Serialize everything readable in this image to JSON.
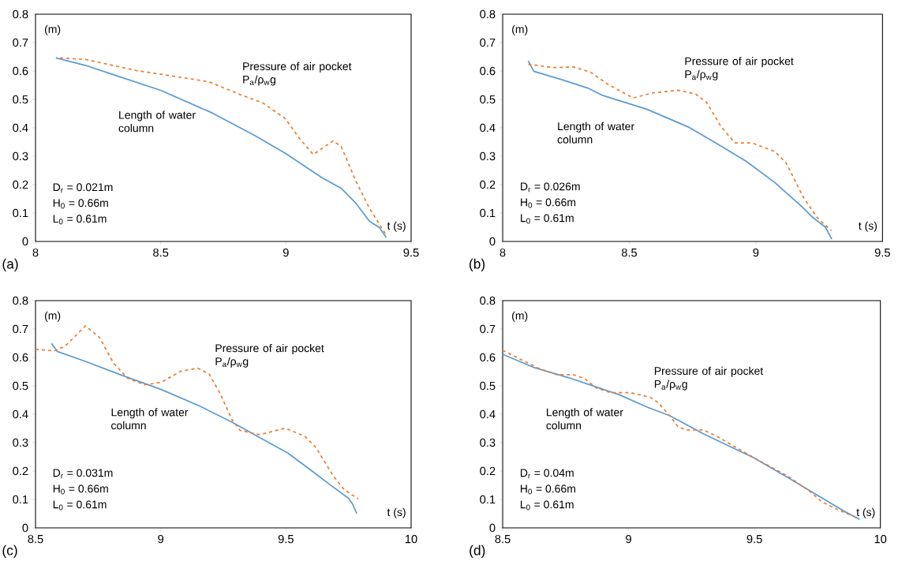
{
  "chart_data": [
    {
      "type": "line",
      "xlabel": "t (s)",
      "ylabel": "(m)",
      "xlim": [
        8,
        9.5
      ],
      "ylim": [
        0,
        0.8
      ],
      "xticks": [
        8,
        8.5,
        9,
        9.5
      ],
      "yticks": [
        0,
        0.1,
        0.2,
        0.3,
        0.4,
        0.5,
        0.6,
        0.7,
        0.8
      ],
      "annotations": [
        "(a)",
        "D$_{r}$ = 0.021m",
        "H$_{0}$ = 0.66m",
        "L$_{0}$ = 0.61m"
      ],
      "series": [
        {
          "name": "Length of water column",
          "color": "#5b9bd5",
          "line_style": "solid",
          "x": [
            8.081,
            8.199,
            8.311,
            8.5,
            8.704,
            8.873,
            9.0,
            9.143,
            9.221,
            9.278,
            9.334,
            9.373,
            9.401
          ],
          "values": [
            0.646,
            0.62,
            0.587,
            0.532,
            0.453,
            0.374,
            0.309,
            0.225,
            0.187,
            0.136,
            0.071,
            0.049,
            0.014
          ]
        },
        {
          "name": "Pressure of air pocket P$_{a}$/ρ$_{w}$g",
          "color": "#ed7d31",
          "line_style": "dashed",
          "x": [
            8.098,
            8.199,
            8.401,
            8.535,
            8.693,
            8.817,
            8.907,
            8.997,
            9.053,
            9.109,
            9.188,
            9.221,
            9.278,
            9.334,
            9.401
          ],
          "values": [
            0.646,
            0.641,
            0.602,
            0.584,
            0.562,
            0.517,
            0.488,
            0.433,
            0.364,
            0.306,
            0.354,
            0.334,
            0.215,
            0.116,
            0.022
          ]
        }
      ]
    },
    {
      "type": "line",
      "xlabel": "t (s)",
      "ylabel": "(m)",
      "xlim": [
        8,
        9.5
      ],
      "ylim": [
        0,
        0.8
      ],
      "xticks": [
        8,
        8.5,
        9,
        9.5
      ],
      "yticks": [
        0,
        0.1,
        0.2,
        0.3,
        0.4,
        0.5,
        0.6,
        0.7,
        0.8
      ],
      "annotations": [
        "(b)",
        "D$_{r}$ = 0.026m",
        "H$_{0}$ = 0.66m",
        "L$_{0}$ = 0.61m"
      ],
      "series": [
        {
          "name": "Length of water column",
          "color": "#5b9bd5",
          "line_style": "solid",
          "x": [
            8.101,
            8.123,
            8.235,
            8.336,
            8.392,
            8.571,
            8.738,
            8.85,
            8.962,
            9.074,
            9.186,
            9.219,
            9.275,
            9.3
          ],
          "values": [
            0.636,
            0.599,
            0.569,
            0.54,
            0.515,
            0.465,
            0.401,
            0.342,
            0.282,
            0.208,
            0.119,
            0.089,
            0.05,
            0.008
          ]
        },
        {
          "name": "Pressure of air pocket P$_{a}$/ρ$_{w}$g",
          "color": "#ed7d31",
          "line_style": "dashed",
          "x": [
            8.101,
            8.201,
            8.28,
            8.347,
            8.414,
            8.515,
            8.593,
            8.693,
            8.76,
            8.805,
            8.861,
            8.917,
            8.984,
            9.074,
            9.119,
            9.186,
            9.242,
            9.298
          ],
          "values": [
            0.624,
            0.612,
            0.614,
            0.596,
            0.554,
            0.505,
            0.523,
            0.532,
            0.52,
            0.49,
            0.406,
            0.347,
            0.347,
            0.317,
            0.277,
            0.158,
            0.084,
            0.038
          ]
        }
      ]
    },
    {
      "type": "line",
      "xlabel": "t (s)",
      "ylabel": "(m)",
      "xlim": [
        8.5,
        10
      ],
      "ylim": [
        0,
        0.8
      ],
      "xticks": [
        8.5,
        9,
        9.5,
        10
      ],
      "yticks": [
        0,
        0.1,
        0.2,
        0.3,
        0.4,
        0.5,
        0.6,
        0.7,
        0.8
      ],
      "annotations": [
        "(c)",
        "D$_{r}$ = 0.031m",
        "H$_{0}$ = 0.66m",
        "L$_{0}$ = 0.61m"
      ],
      "series": [
        {
          "name": "Length of water column",
          "color": "#5b9bd5",
          "line_style": "solid",
          "x": [
            8.564,
            8.587,
            8.699,
            8.845,
            9.002,
            9.148,
            9.283,
            9.395,
            9.508,
            9.598,
            9.688,
            9.75,
            9.766,
            9.783
          ],
          "values": [
            0.649,
            0.621,
            0.586,
            0.537,
            0.487,
            0.432,
            0.373,
            0.318,
            0.263,
            0.204,
            0.144,
            0.104,
            0.084,
            0.05
          ]
        },
        {
          "name": "Pressure of air pocket P$_{a}$/ρ$_{w}$g",
          "color": "#ed7d31",
          "line_style": "dashed",
          "x": [
            8.5,
            8.575,
            8.62,
            8.699,
            8.755,
            8.811,
            8.867,
            8.935,
            9.002,
            9.081,
            9.148,
            9.193,
            9.238,
            9.283,
            9.317,
            9.395,
            9.497,
            9.575,
            9.62,
            9.688,
            9.733,
            9.789
          ],
          "values": [
            0.629,
            0.623,
            0.641,
            0.711,
            0.671,
            0.581,
            0.527,
            0.504,
            0.512,
            0.552,
            0.562,
            0.542,
            0.472,
            0.383,
            0.343,
            0.328,
            0.351,
            0.323,
            0.283,
            0.184,
            0.134,
            0.102
          ]
        }
      ]
    },
    {
      "type": "line",
      "xlabel": "t (s)",
      "ylabel": "(m)",
      "xlim": [
        8.5,
        10
      ],
      "ylim": [
        0,
        0.8
      ],
      "xticks": [
        8.5,
        9,
        9.5,
        10
      ],
      "yticks": [
        0,
        0.1,
        0.2,
        0.3,
        0.4,
        0.5,
        0.6,
        0.7,
        0.8
      ],
      "annotations": [
        "(d)",
        "D$_{r}$ = 0.04m",
        "H$_{0}$ = 0.66m",
        "L$_{0}$ = 0.61m"
      ],
      "series": [
        {
          "name": "Length of water column",
          "color": "#5b9bd5",
          "line_style": "solid",
          "x": [
            8.5,
            8.626,
            8.761,
            8.828,
            8.962,
            9.074,
            9.163,
            9.297,
            9.499,
            9.633,
            9.745,
            9.857,
            9.918
          ],
          "values": [
            0.611,
            0.564,
            0.529,
            0.509,
            0.469,
            0.425,
            0.395,
            0.331,
            0.246,
            0.177,
            0.117,
            0.058,
            0.03
          ]
        },
        {
          "name": "Pressure of air pocket P$_{a}$/ρ$_{w}$g",
          "color": "#ed7d31",
          "line_style": "dashed",
          "x": [
            8.5,
            8.57,
            8.649,
            8.716,
            8.783,
            8.828,
            8.873,
            8.929,
            9.007,
            9.085,
            9.119,
            9.163,
            9.197,
            9.23,
            9.297,
            9.353,
            9.499,
            9.633,
            9.722,
            9.767,
            9.834,
            9.901
          ],
          "values": [
            0.625,
            0.594,
            0.559,
            0.539,
            0.539,
            0.524,
            0.492,
            0.476,
            0.476,
            0.46,
            0.44,
            0.395,
            0.355,
            0.345,
            0.345,
            0.321,
            0.246,
            0.182,
            0.127,
            0.092,
            0.063,
            0.038
          ]
        }
      ]
    }
  ]
}
